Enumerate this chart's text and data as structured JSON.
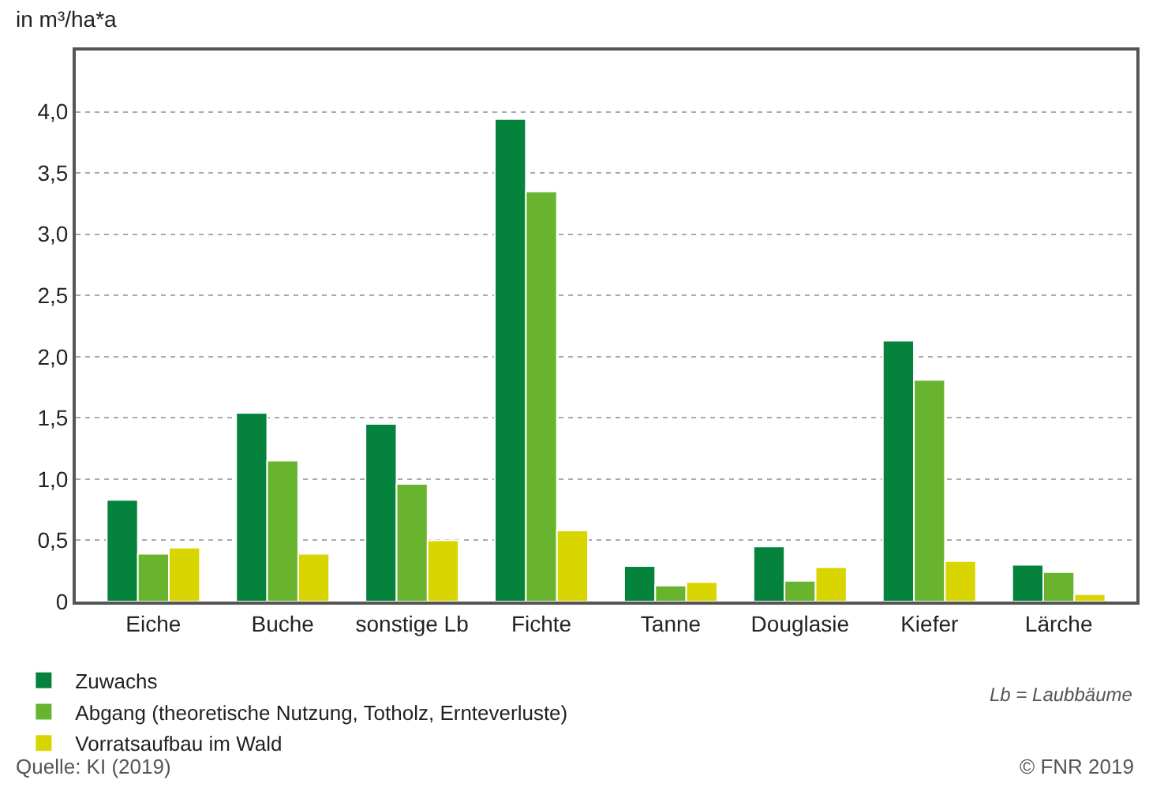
{
  "chart_data": {
    "type": "bar",
    "ylabel": "in m³/ha*a",
    "categories": [
      "Eiche",
      "Buche",
      "sonstige Lb",
      "Fichte",
      "Tanne",
      "Douglasie",
      "Kiefer",
      "Lärche"
    ],
    "series": [
      {
        "name": "Zuwachs",
        "color": "#05823c",
        "values": [
          0.83,
          1.54,
          1.45,
          3.94,
          0.29,
          0.45,
          2.13,
          0.3
        ]
      },
      {
        "name": "Abgang (theoretische Nutzung, Totholz, Ernteverluste)",
        "color": "#68b42e",
        "values": [
          0.39,
          1.15,
          0.96,
          3.35,
          0.13,
          0.17,
          1.81,
          0.24
        ]
      },
      {
        "name": "Vorratsaufbau im Wald",
        "color": "#d9d500",
        "values": [
          0.44,
          0.39,
          0.5,
          0.58,
          0.16,
          0.28,
          0.33,
          0.06
        ]
      }
    ],
    "ylim": [
      0,
      4.5
    ],
    "yticks": [
      0,
      {
        "value": 0.5,
        "label": "0,5"
      },
      {
        "value": 1,
        "label": "1,0"
      },
      {
        "value": 1.5,
        "label": "1,5"
      },
      {
        "value": 2,
        "label": "2,0"
      },
      {
        "value": 2.5,
        "label": "2,5"
      },
      {
        "value": 3,
        "label": "3,0"
      },
      {
        "value": 3.5,
        "label": "3,5"
      },
      {
        "value": 4,
        "label": "4,0"
      }
    ],
    "grid": "y",
    "legend": "bottom",
    "annotations": [
      "Lb = Laubbäume",
      "Quelle: KI (2019)",
      "© FNR 2019"
    ]
  }
}
